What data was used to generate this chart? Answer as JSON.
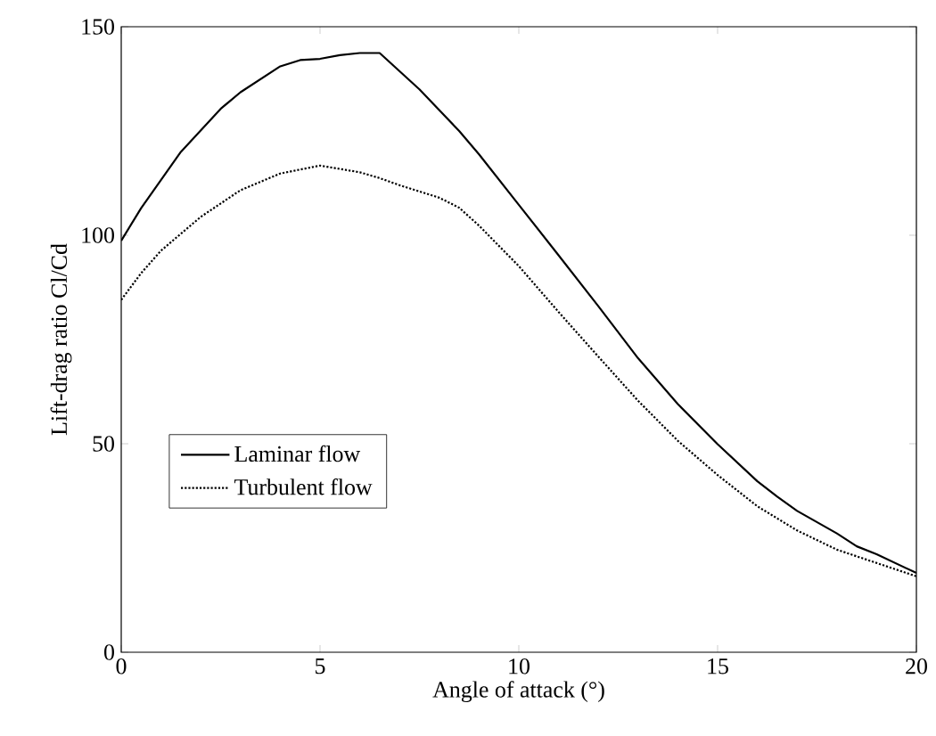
{
  "chart_data": {
    "type": "line",
    "xlabel": "Angle of attack (°)",
    "ylabel": "Lift-drag ratio Cl/Cd",
    "xlim": [
      0,
      20
    ],
    "ylim": [
      0,
      150
    ],
    "xticks": [
      0,
      5,
      10,
      15,
      20
    ],
    "yticks": [
      0,
      50,
      100,
      150
    ],
    "grid": false,
    "legend": "left",
    "marker": "none",
    "series": [
      {
        "name": "Laminar flow",
        "color": "#000000",
        "line_style": "solid",
        "x": [
          0,
          0.5,
          1.5,
          2.5,
          3,
          4,
          4.5,
          5,
          5.5,
          6,
          6.5,
          7.5,
          8.5,
          9,
          10,
          11,
          12,
          13,
          14,
          15,
          16,
          16.5,
          17,
          18,
          18.5,
          19,
          20
        ],
        "values": [
          98.7,
          106.5,
          120,
          130.3,
          134.3,
          140.5,
          142,
          142.3,
          143.2,
          143.7,
          143.7,
          135,
          125,
          119.4,
          107.3,
          95.2,
          83,
          70.5,
          59.5,
          49.9,
          41,
          37.3,
          33.9,
          28.5,
          25.4,
          23.5,
          19
        ]
      },
      {
        "name": "Turbulent flow",
        "color": "#000000",
        "line_style": "dotted",
        "x": [
          0,
          0.5,
          1,
          2,
          3,
          4,
          5,
          6,
          6.5,
          7,
          8,
          8.5,
          9,
          10,
          11,
          12,
          13,
          14,
          15,
          16,
          17,
          18,
          19,
          20
        ],
        "values": [
          84.5,
          90.9,
          96.3,
          104.4,
          110.8,
          114.8,
          116.7,
          115.1,
          113.7,
          112,
          109,
          106.6,
          102.3,
          92.6,
          81.6,
          70.9,
          60.3,
          50.7,
          42.5,
          35,
          29.2,
          24.6,
          21.4,
          18.2
        ]
      }
    ]
  }
}
